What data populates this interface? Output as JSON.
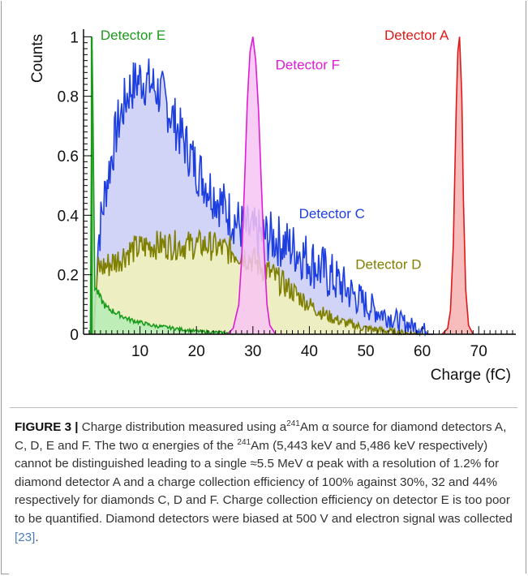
{
  "chart_data": {
    "type": "area",
    "ylabel": "Counts",
    "xlabel": "Charge (fC)",
    "xlim": [
      0,
      76
    ],
    "ylim": [
      0,
      1.02
    ],
    "xticks": [
      10,
      20,
      30,
      40,
      50,
      60,
      70
    ],
    "yticks": [
      0,
      0.2,
      0.4,
      0.6,
      0.8,
      1
    ],
    "ytick_labels": [
      "0",
      "0.2",
      "0.4",
      "0.6",
      "0.8",
      "1"
    ],
    "grid": false,
    "series": [
      {
        "name": "Detector E",
        "color": "#1a9b1a",
        "fill": "#b6ecb6",
        "x": [
          1.2,
          1.5,
          2,
          3,
          4,
          6,
          8,
          10,
          12,
          14,
          16,
          20,
          25,
          30
        ],
        "y": [
          0,
          1.0,
          0.16,
          0.12,
          0.09,
          0.07,
          0.05,
          0.04,
          0.03,
          0.025,
          0.02,
          0.01,
          0.005,
          0
        ]
      },
      {
        "name": "Detector C",
        "color": "#1e3fe0",
        "fill": "#c9ccf5",
        "x": [
          1.8,
          2.5,
          4,
          6,
          8,
          10,
          12,
          14,
          16,
          18,
          20,
          22,
          24,
          26,
          28,
          30,
          32,
          34,
          36,
          38,
          40,
          42,
          44,
          46,
          48,
          50,
          52,
          54,
          56,
          58,
          60,
          61,
          62
        ],
        "y": [
          0,
          0.3,
          0.5,
          0.7,
          0.82,
          0.86,
          0.84,
          0.8,
          0.72,
          0.64,
          0.56,
          0.5,
          0.45,
          0.4,
          0.36,
          0.34,
          0.33,
          0.32,
          0.3,
          0.28,
          0.25,
          0.22,
          0.19,
          0.16,
          0.13,
          0.1,
          0.08,
          0.06,
          0.045,
          0.03,
          0.02,
          0.01,
          0
        ]
      },
      {
        "name": "Detector D",
        "color": "#7f7f00",
        "fill": "#f2f2b8",
        "x": [
          1.8,
          2.5,
          4,
          6,
          8,
          10,
          12,
          14,
          16,
          18,
          20,
          22,
          24,
          26,
          28,
          30,
          32,
          34,
          36,
          38,
          40,
          42,
          44,
          46,
          48,
          50,
          52,
          54,
          56,
          58,
          60
        ],
        "y": [
          0,
          0.22,
          0.23,
          0.25,
          0.28,
          0.29,
          0.3,
          0.3,
          0.3,
          0.3,
          0.3,
          0.3,
          0.29,
          0.28,
          0.27,
          0.25,
          0.22,
          0.19,
          0.16,
          0.13,
          0.1,
          0.075,
          0.055,
          0.04,
          0.03,
          0.02,
          0.015,
          0.01,
          0.005,
          0.002,
          0
        ]
      },
      {
        "name": "Detector F",
        "color": "#e01ad8",
        "fill": "#f7c4f3",
        "x": [
          25.5,
          26.5,
          27.5,
          28,
          28.5,
          29,
          29.5,
          30,
          30.5,
          31,
          31.5,
          32,
          32.5,
          33,
          34
        ],
        "y": [
          0,
          0.02,
          0.1,
          0.25,
          0.5,
          0.78,
          0.95,
          1.0,
          0.92,
          0.75,
          0.5,
          0.28,
          0.1,
          0.03,
          0
        ]
      },
      {
        "name": "Detector A",
        "color": "#e01818",
        "fill": "#f6b0b0",
        "x": [
          63.5,
          64.5,
          65,
          65.5,
          66,
          66.3,
          66.6,
          67,
          67.3,
          67.7,
          68.2,
          69
        ],
        "y": [
          0,
          0.02,
          0.08,
          0.3,
          0.75,
          0.95,
          1.0,
          0.8,
          0.45,
          0.15,
          0.03,
          0
        ]
      }
    ]
  },
  "caption": {
    "label": "FIGURE 3 |",
    "p1": " Charge distribution measured using a",
    "sup1": "241",
    "p2": "Am α source for diamond detectors A, C, D, E and F. The two α energies of the ",
    "sup2": "241",
    "p3": "Am (5,443 keV and 5,486 keV respectively) cannot be distinguished leading to a single ≈5.5 MeV α peak with a resolution of 1.2% for diamond detector A and a charge collection efficiency of 100% against 30%, 32 and 44% respectively for diamonds C, D and F. Charge collection efficiency on detector E is too poor to be quantified. Diamond detectors were biased at 500 V and electron signal was collected ",
    "ref": "[23]",
    "p4": "."
  }
}
